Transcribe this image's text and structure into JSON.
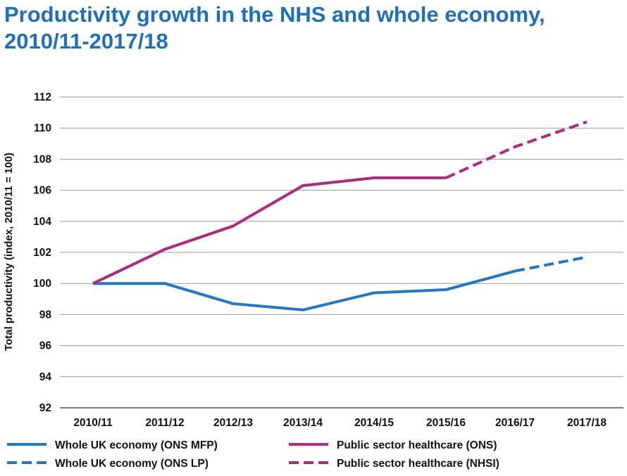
{
  "title": "Productivity growth in the NHS and whole economy, 2010/11-2017/18",
  "chart_data": {
    "type": "line",
    "title": "Productivity growth in the NHS and whole economy, 2010/11-2017/18",
    "ylabel": "Total productivity (index, 2010/11 = 100)",
    "xlabel": "",
    "categories": [
      "2010/11",
      "2011/12",
      "2012/13",
      "2013/14",
      "2014/15",
      "2015/16",
      "2016/17",
      "2017/18"
    ],
    "y_ticks": [
      "92",
      "94",
      "96",
      "98",
      "100",
      "102",
      "104",
      "106",
      "108",
      "110",
      "112"
    ],
    "ylim": [
      92,
      112
    ],
    "grid": true,
    "legend_position": "bottom",
    "series": [
      {
        "name": "Whole UK economy (ONS MFP)",
        "color": "#1f77d0",
        "dashed": false,
        "values": [
          100.0,
          100.0,
          98.7,
          98.3,
          99.4,
          99.6,
          100.8,
          null
        ]
      },
      {
        "name": "Whole UK economy (ONS LP)",
        "color": "#1f77d0",
        "dashed": true,
        "values": [
          null,
          null,
          null,
          null,
          null,
          null,
          100.8,
          101.7
        ]
      },
      {
        "name": "Public sector healthcare (ONS)",
        "color": "#b2287a",
        "dashed": false,
        "values": [
          100.0,
          102.2,
          103.7,
          106.3,
          106.8,
          106.8,
          null,
          null
        ]
      },
      {
        "name": "Public sector healthcare (NHSI)",
        "color": "#b2287a",
        "dashed": true,
        "values": [
          null,
          null,
          null,
          null,
          null,
          106.8,
          108.8,
          110.4
        ]
      }
    ]
  }
}
